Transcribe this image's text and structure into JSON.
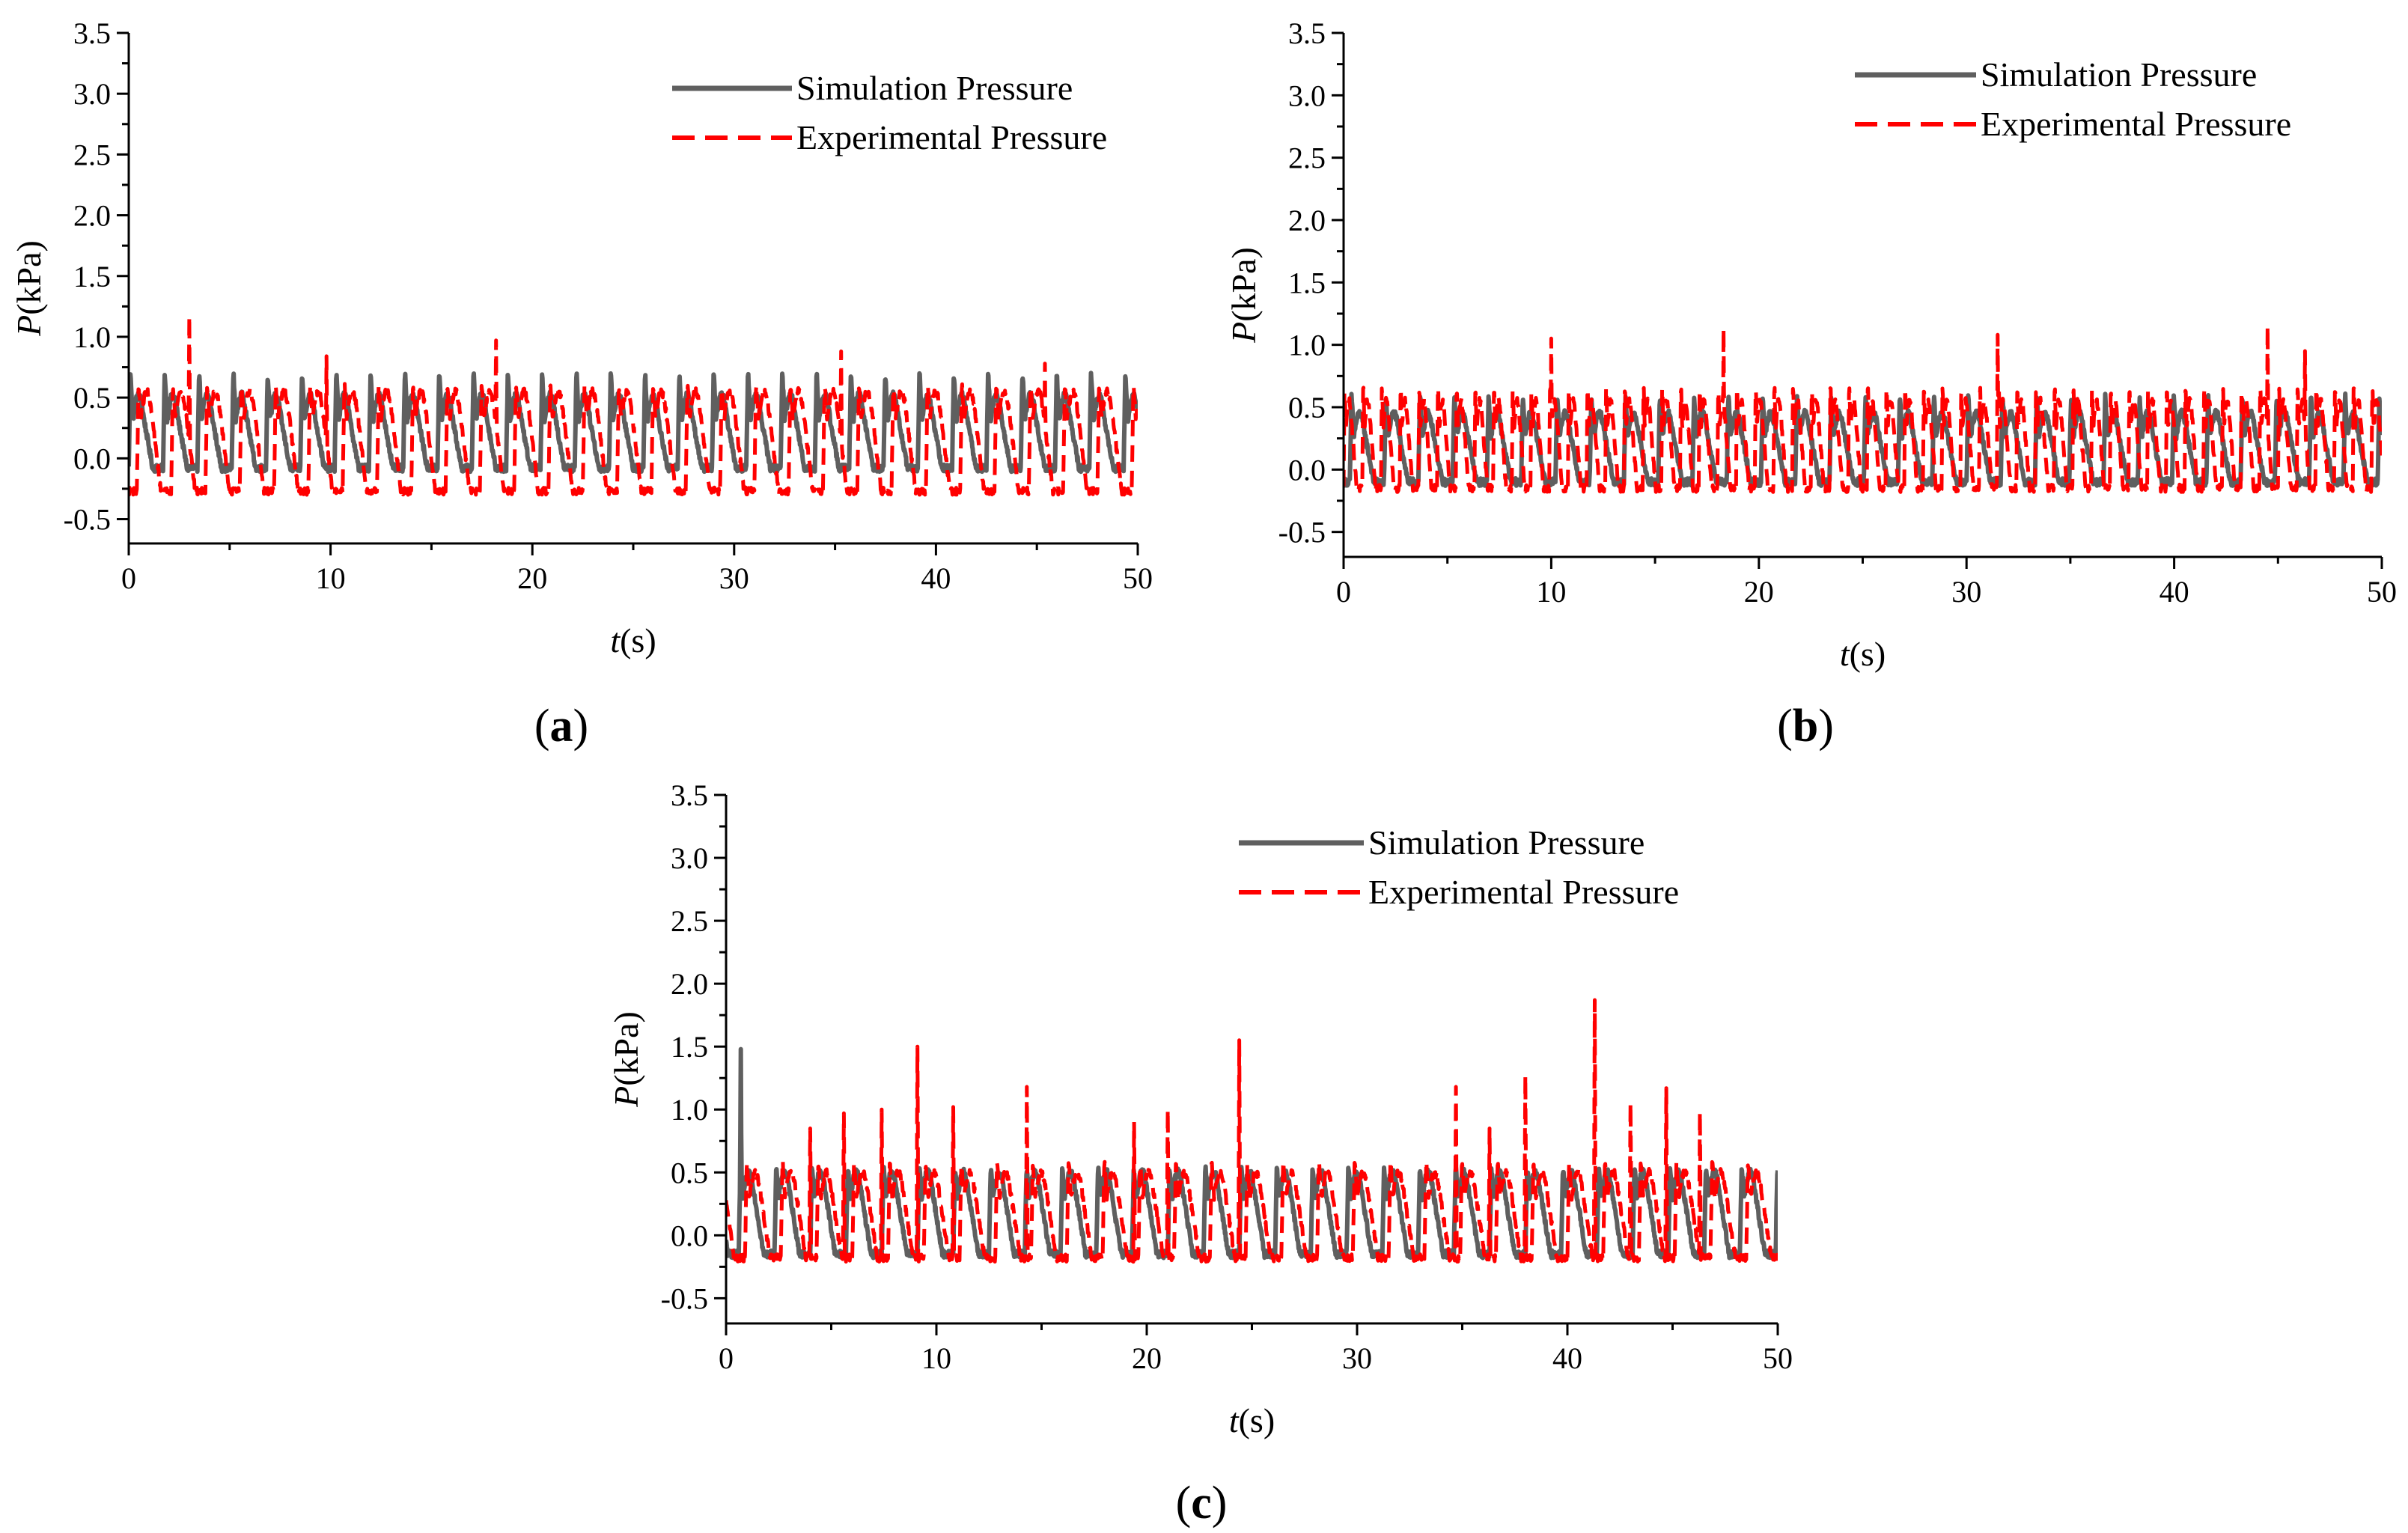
{
  "chart_data": [
    {
      "type": "line",
      "panel_label": "a",
      "xlabel_italic": "t",
      "xlabel_rest": "(s)",
      "ylabel_italic": "P",
      "ylabel_rest": "(kPa)",
      "xlim": [
        0,
        50
      ],
      "ylim": [
        -0.7,
        3.5
      ],
      "x_ticks": [
        "0",
        "10",
        "20",
        "30",
        "40",
        "50"
      ],
      "y_ticks": [
        "-0.5",
        "0.0",
        "0.5",
        "1.0",
        "1.5",
        "2.0",
        "2.5",
        "3.0",
        "3.5"
      ],
      "grid": false,
      "legend_position": "top-right",
      "series": [
        {
          "name": "Simulation Pressure",
          "color": "#5f5f5f",
          "style": "solid",
          "period_s": 1.7,
          "low": -0.08,
          "high": 0.52,
          "spike": 0.72,
          "start_s": 0.0
        },
        {
          "name": "Experimental Pressure",
          "color": "#ff0000",
          "style": "dashed",
          "period_s": 1.7,
          "low": -0.27,
          "high": 0.55,
          "spike": 0.62,
          "start_s": 0.4,
          "peaks": [
            [
              3.0,
              1.17
            ],
            [
              9.8,
              0.84
            ],
            [
              18.2,
              0.97
            ],
            [
              35.3,
              0.88
            ],
            [
              45.4,
              0.78
            ]
          ]
        }
      ]
    },
    {
      "type": "line",
      "panel_label": "b",
      "xlabel_italic": "t",
      "xlabel_rest": "(s)",
      "ylabel_italic": "P",
      "ylabel_rest": "(kPa)",
      "xlim": [
        0,
        50
      ],
      "ylim": [
        -0.7,
        3.5
      ],
      "x_ticks": [
        "0",
        "10",
        "20",
        "30",
        "40",
        "50"
      ],
      "y_ticks": [
        "-0.5",
        "0.0",
        "0.5",
        "1.0",
        "1.5",
        "2.0",
        "2.5",
        "3.0",
        "3.5"
      ],
      "grid": false,
      "legend_position": "top-right",
      "series": [
        {
          "name": "Simulation Pressure",
          "color": "#5f5f5f",
          "style": "solid",
          "period_s": 1.65,
          "low": -0.1,
          "high": 0.45,
          "spike": 0.6,
          "start_s": 0.3
        },
        {
          "name": "Experimental Pressure",
          "color": "#ff0000",
          "style": "dashed",
          "period_s": 0.9,
          "low": -0.15,
          "high": 0.55,
          "spike": 0.72,
          "start_s": 0.0,
          "peaks": [
            [
              10.0,
              1.05
            ],
            [
              18.3,
              1.13
            ],
            [
              31.5,
              1.08
            ],
            [
              44.5,
              1.15
            ],
            [
              46.3,
              0.95
            ]
          ]
        }
      ]
    },
    {
      "type": "line",
      "panel_label": "c",
      "xlabel_italic": "t",
      "xlabel_rest": "(s)",
      "ylabel_italic": "P",
      "ylabel_rest": "(kPa)",
      "xlim": [
        0,
        50
      ],
      "ylim": [
        -0.7,
        3.5
      ],
      "x_ticks": [
        "0",
        "10",
        "20",
        "30",
        "40",
        "50"
      ],
      "y_ticks": [
        "-0.5",
        "0.0",
        "0.5",
        "1.0",
        "1.5",
        "2.0",
        "2.5",
        "3.0",
        "3.5"
      ],
      "grid": false,
      "legend_position": "top-center",
      "series": [
        {
          "name": "Simulation Pressure",
          "color": "#5f5f5f",
          "style": "solid",
          "period_s": 1.7,
          "low": -0.15,
          "high": 0.5,
          "spike": 0.55,
          "start_s": 0.6,
          "peaks": [
            [
              0.7,
              1.48
            ]
          ]
        },
        {
          "name": "Experimental Pressure",
          "color": "#ff0000",
          "style": "dashed",
          "period_s": 1.7,
          "low": -0.18,
          "high": 0.5,
          "spike": 0.6,
          "start_s": 0.9,
          "peaks": [
            [
              4.0,
              0.85
            ],
            [
              5.6,
              0.97
            ],
            [
              7.4,
              1.0
            ],
            [
              9.1,
              1.5
            ],
            [
              10.8,
              1.02
            ],
            [
              14.3,
              1.18
            ],
            [
              19.4,
              0.9
            ],
            [
              21.0,
              1.0
            ],
            [
              24.4,
              1.55
            ],
            [
              34.7,
              1.18
            ],
            [
              36.3,
              0.85
            ],
            [
              38.0,
              1.27
            ],
            [
              41.3,
              1.87
            ],
            [
              43.0,
              1.05
            ],
            [
              44.7,
              1.17
            ],
            [
              46.3,
              0.98
            ]
          ]
        }
      ]
    }
  ]
}
